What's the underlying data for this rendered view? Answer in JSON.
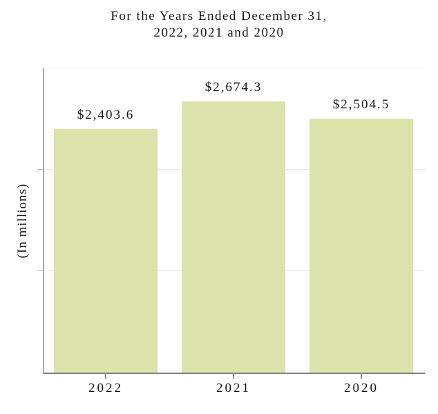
{
  "title": {
    "line1": "For the Years Ended December 31,",
    "line2": "2022, 2021 and 2020"
  },
  "y_axis": {
    "label": "(In millions)"
  },
  "chart_data": {
    "type": "bar",
    "title": "For the Years Ended December 31, 2022, 2021 and 2020",
    "categories": [
      "2022",
      "2021",
      "2020"
    ],
    "values": [
      2403.6,
      2674.3,
      2504.5
    ],
    "value_labels": [
      "$2,403.6",
      "$2,674.3",
      "$2,504.5"
    ],
    "xlabel": "",
    "ylabel": "(In millions)",
    "ylim": [
      0,
      3000
    ],
    "gridlines": [
      1000,
      2000
    ],
    "grid": "horizontal",
    "legend": "none",
    "y_tick_labels_visible": false,
    "bar_color": "#dbe3aa"
  },
  "colors": {
    "bar_fill": "#dbe3aa",
    "left_axis": "#a6a6a6",
    "bottom_axis": "#7f7f7f",
    "gridline": "#e9e9e9",
    "tick": "#909090",
    "text": "#141414",
    "background": "#ffffff"
  }
}
